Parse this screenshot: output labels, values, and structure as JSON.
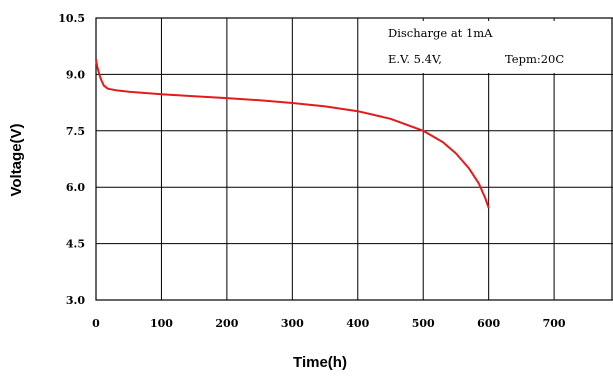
{
  "chart_data": {
    "type": "line",
    "xlabel": "Time(h)",
    "ylabel": "Voltage(V)",
    "xlim": [
      0,
      790
    ],
    "ylim": [
      3.0,
      10.5
    ],
    "x_ticks": [
      "0",
      "100",
      "200",
      "300",
      "400",
      "500",
      "600",
      "700"
    ],
    "y_ticks": [
      "3.0",
      "4.5",
      "6.0",
      "7.5",
      "9.0",
      "10.5"
    ],
    "grid": true,
    "annotations": [
      "Discharge at 1mA",
      "E.V. 5.4V,",
      "Tepm:20C"
    ],
    "series": [
      {
        "color": "#e31b1b",
        "x": [
          0,
          2,
          5,
          8,
          12,
          18,
          30,
          50,
          100,
          150,
          200,
          250,
          300,
          350,
          400,
          450,
          500,
          530,
          550,
          570,
          585,
          595,
          600
        ],
        "y": [
          9.4,
          9.2,
          9.0,
          8.85,
          8.7,
          8.62,
          8.58,
          8.54,
          8.47,
          8.42,
          8.37,
          8.31,
          8.24,
          8.15,
          8.02,
          7.82,
          7.5,
          7.2,
          6.9,
          6.5,
          6.1,
          5.7,
          5.45
        ]
      }
    ]
  }
}
